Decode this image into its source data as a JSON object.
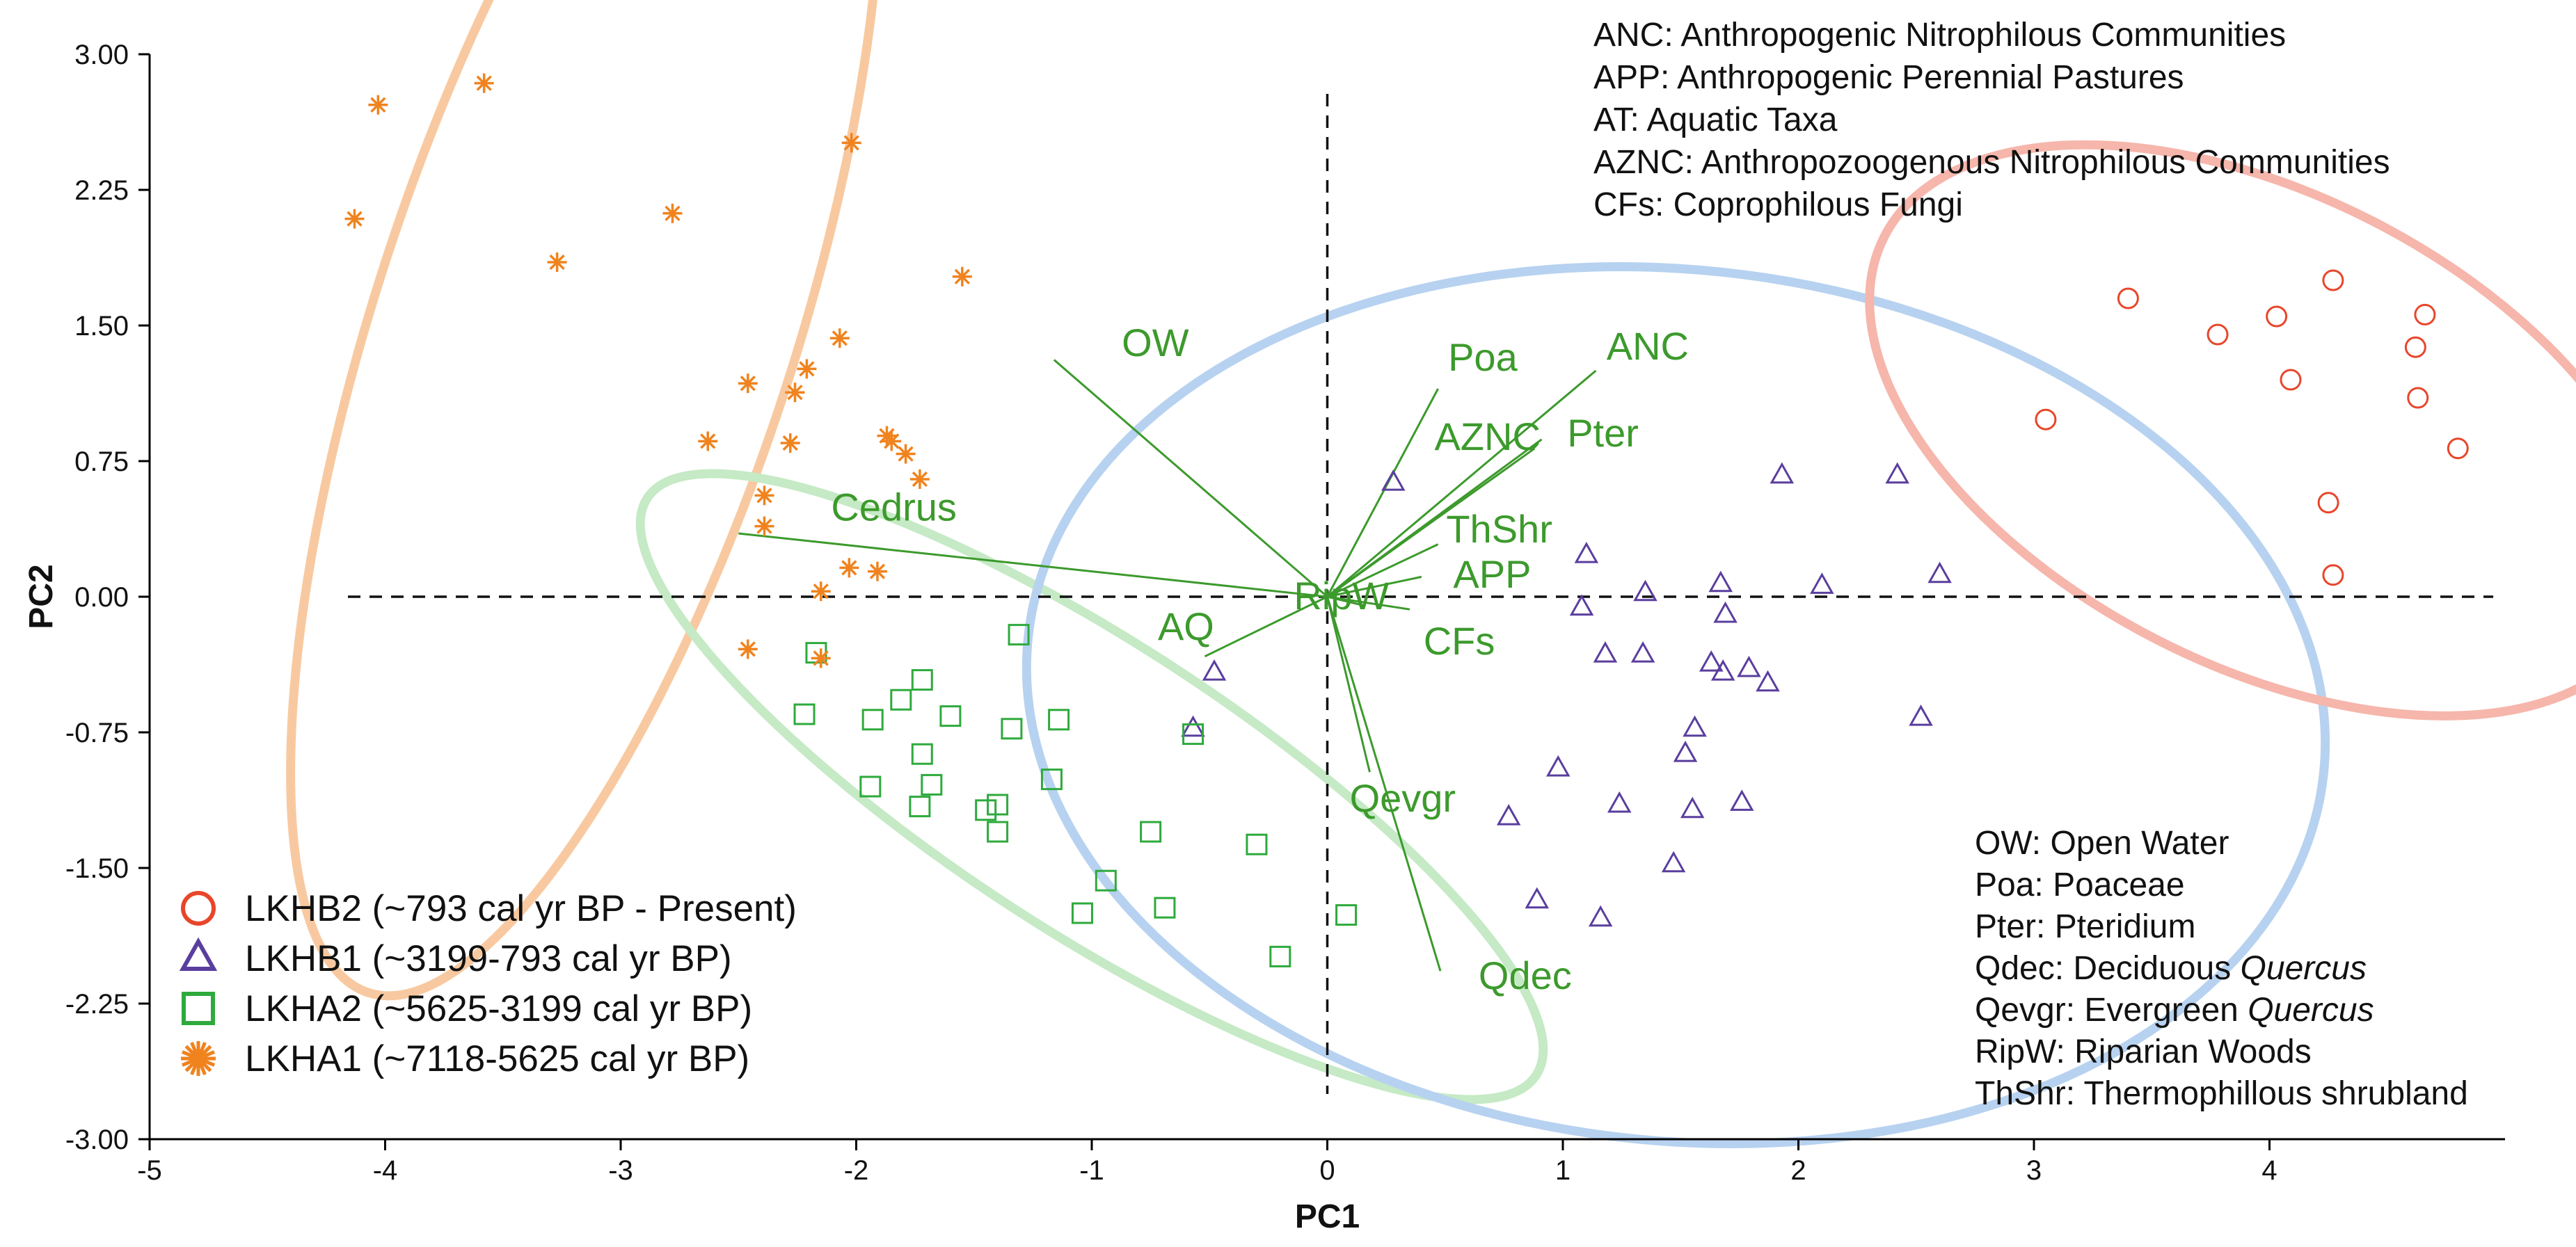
{
  "chart_data": {
    "type": "scatter",
    "title": "",
    "xlabel": "PC1",
    "ylabel": "PC2",
    "xlim": [
      -5,
      5
    ],
    "ylim": [
      -3,
      3
    ],
    "xticks": [
      "-5",
      "-4",
      "-3",
      "-2",
      "-1",
      "0",
      "1",
      "2",
      "3",
      "4"
    ],
    "yticks": [
      "3.00",
      "2.25",
      "1.50",
      "0.75",
      "0.00",
      "-0.75",
      "-1.50",
      "-2.25",
      "-3.00"
    ],
    "grid": false,
    "legend_position": "bottom-left",
    "series": [
      {
        "name": "LKHB2 (~793 cal yr BP - Present)",
        "marker": "circle",
        "color": "#E8462A",
        "points": [
          [
            3.4,
            1.65
          ],
          [
            3.78,
            1.45
          ],
          [
            4.03,
            1.55
          ],
          [
            4.27,
            1.75
          ],
          [
            4.66,
            1.56
          ],
          [
            4.62,
            1.38
          ],
          [
            4.09,
            1.2
          ],
          [
            4.63,
            1.1
          ],
          [
            4.8,
            0.82
          ],
          [
            3.05,
            0.98
          ],
          [
            4.25,
            0.52
          ],
          [
            4.27,
            0.12
          ]
        ]
      },
      {
        "name": "LKHB1 (~3199-793 cal yr BP)",
        "marker": "triangle",
        "color": "#5A3E9E",
        "points": [
          [
            0.28,
            0.63
          ],
          [
            1.93,
            0.67
          ],
          [
            2.42,
            0.67
          ],
          [
            1.1,
            0.23
          ],
          [
            1.35,
            0.02
          ],
          [
            1.67,
            0.07
          ],
          [
            2.1,
            0.06
          ],
          [
            2.6,
            0.12
          ],
          [
            1.08,
            -0.06
          ],
          [
            1.69,
            -0.1
          ],
          [
            1.18,
            -0.32
          ],
          [
            1.34,
            -0.32
          ],
          [
            1.63,
            -0.37
          ],
          [
            1.68,
            -0.42
          ],
          [
            1.79,
            -0.4
          ],
          [
            1.87,
            -0.48
          ],
          [
            -0.48,
            -0.42
          ],
          [
            -0.57,
            -0.73
          ],
          [
            2.52,
            -0.67
          ],
          [
            1.56,
            -0.73
          ],
          [
            1.52,
            -0.87
          ],
          [
            0.98,
            -0.95
          ],
          [
            0.77,
            -1.22
          ],
          [
            1.24,
            -1.15
          ],
          [
            1.55,
            -1.18
          ],
          [
            1.76,
            -1.14
          ],
          [
            1.47,
            -1.48
          ],
          [
            0.89,
            -1.68
          ],
          [
            1.16,
            -1.78
          ]
        ]
      },
      {
        "name": "LKHA2 (~5625-3199 cal yr BP)",
        "marker": "square",
        "color": "#2EAA3C",
        "points": [
          [
            -2.17,
            -0.31
          ],
          [
            -1.31,
            -0.21
          ],
          [
            -1.72,
            -0.46
          ],
          [
            -1.81,
            -0.57
          ],
          [
            -2.22,
            -0.65
          ],
          [
            -1.93,
            -0.68
          ],
          [
            -1.6,
            -0.66
          ],
          [
            -1.34,
            -0.73
          ],
          [
            -1.14,
            -0.68
          ],
          [
            -0.57,
            -0.76
          ],
          [
            -1.72,
            -0.87
          ],
          [
            -1.68,
            -1.04
          ],
          [
            -1.94,
            -1.05
          ],
          [
            -1.17,
            -1.01
          ],
          [
            -1.4,
            -1.15
          ],
          [
            -1.45,
            -1.18
          ],
          [
            -1.4,
            -1.3
          ],
          [
            -1.73,
            -1.16
          ],
          [
            -0.75,
            -1.3
          ],
          [
            -0.3,
            -1.37
          ],
          [
            -0.94,
            -1.57
          ],
          [
            -0.69,
            -1.72
          ],
          [
            -1.04,
            -1.75
          ],
          [
            0.08,
            -1.76
          ],
          [
            -0.2,
            -1.99
          ]
        ]
      },
      {
        "name": "LKHA1 (~7118-5625 cal yr BP)",
        "marker": "star",
        "color": "#F0831E",
        "points": [
          [
            -4.03,
            2.72
          ],
          [
            -3.58,
            2.84
          ],
          [
            -4.13,
            2.09
          ],
          [
            -2.02,
            2.51
          ],
          [
            -2.78,
            2.12
          ],
          [
            -3.27,
            1.85
          ],
          [
            -1.55,
            1.77
          ],
          [
            -2.07,
            1.43
          ],
          [
            -2.21,
            1.26
          ],
          [
            -2.46,
            1.18
          ],
          [
            -2.26,
            1.13
          ],
          [
            -2.63,
            0.86
          ],
          [
            -2.28,
            0.85
          ],
          [
            -1.87,
            0.89
          ],
          [
            -1.85,
            0.86
          ],
          [
            -1.79,
            0.79
          ],
          [
            -1.73,
            0.65
          ],
          [
            -2.39,
            0.56
          ],
          [
            -2.39,
            0.39
          ],
          [
            -2.03,
            0.16
          ],
          [
            -1.91,
            0.14
          ],
          [
            -2.15,
            0.03
          ],
          [
            -2.46,
            -0.29
          ],
          [
            -2.15,
            -0.34
          ]
        ]
      }
    ],
    "ellipses": [
      {
        "group": "LKHA1",
        "color": "#F8C9A0",
        "cx": -3.15,
        "cy": 1.5,
        "rx": 2.98,
        "ry": 1.16,
        "rotation_deg": -72
      },
      {
        "group": "LKHA2",
        "color": "#C5EAC5",
        "cx": -1.0,
        "cy": -1.05,
        "rx": 2.25,
        "ry": 0.8,
        "rotation_deg": 33
      },
      {
        "group": "LKHB1",
        "color": "#B7D2F0",
        "cx": 1.48,
        "cy": -0.6,
        "rx": 1.85,
        "ry": 3.6,
        "rotation_deg": -84
      },
      {
        "group": "LKHB2",
        "color": "#F6B6AB",
        "cx": 3.98,
        "cy": 0.92,
        "rx": 1.0,
        "ry": 2.36,
        "rotation_deg": -63
      }
    ],
    "loadings": {
      "color": "#3C9A2C",
      "vectors": [
        {
          "label": "OW",
          "end": [
            -1.16,
            1.31
          ],
          "label_pos": [
            -0.73,
            1.4
          ]
        },
        {
          "label": "Cedrus",
          "end": [
            -2.5,
            0.35
          ],
          "label_pos": [
            -1.84,
            0.49
          ]
        },
        {
          "label": "AQ",
          "end": [
            -0.52,
            -0.33
          ],
          "label_pos": [
            -0.6,
            -0.17
          ]
        },
        {
          "label": "RipW",
          "end": [
            0.16,
            -0.05
          ],
          "label_pos": [
            0.06,
            0.0
          ]
        },
        {
          "label": "Poa",
          "end": [
            0.47,
            1.15
          ],
          "label_pos": [
            0.66,
            1.32
          ]
        },
        {
          "label": "ANC",
          "end": [
            1.14,
            1.25
          ],
          "label_pos": [
            1.36,
            1.38
          ]
        },
        {
          "label": "AZNC",
          "end": [
            0.91,
            0.87
          ],
          "label_pos": [
            0.68,
            0.88
          ]
        },
        {
          "label": "Pter",
          "end": [
            0.88,
            0.82
          ],
          "label_pos": [
            1.17,
            0.9
          ]
        },
        {
          "label": "ThShr",
          "end": [
            0.47,
            0.29
          ],
          "label_pos": [
            0.73,
            0.37
          ]
        },
        {
          "label": "APP",
          "end": [
            0.4,
            0.11
          ],
          "label_pos": [
            0.7,
            0.12
          ]
        },
        {
          "label": "CFs",
          "end": [
            0.35,
            -0.07
          ],
          "label_pos": [
            0.56,
            -0.25
          ]
        },
        {
          "label": "Qevgr",
          "end": [
            0.18,
            -0.97
          ],
          "label_pos": [
            0.32,
            -1.12
          ]
        },
        {
          "label": "Qdec",
          "end": [
            0.48,
            -2.07
          ],
          "label_pos": [
            0.84,
            -2.1
          ]
        }
      ]
    },
    "annotations_top": [
      "ANC: Anthropogenic Nitrophilous Communities",
      "APP: Anthropogenic Perennial Pastures",
      "AT: Aquatic Taxa",
      "AZNC: Anthropozoogenous Nitrophilous Communities",
      "CFs: Coprophilous Fungi"
    ],
    "annotations_bottom": [
      {
        "plain": "OW: Open Water"
      },
      {
        "plain": "Poa: Poaceae"
      },
      {
        "plain": "Pter: Pteridium"
      },
      {
        "plain": "Qdec: Deciduous ",
        "italic": "Quercus"
      },
      {
        "plain": "Qevgr: Evergreen ",
        "italic": "Quercus"
      },
      {
        "plain": "RipW: Riparian Woods"
      },
      {
        "plain": "ThShr: Thermophillous shrubland"
      }
    ]
  }
}
